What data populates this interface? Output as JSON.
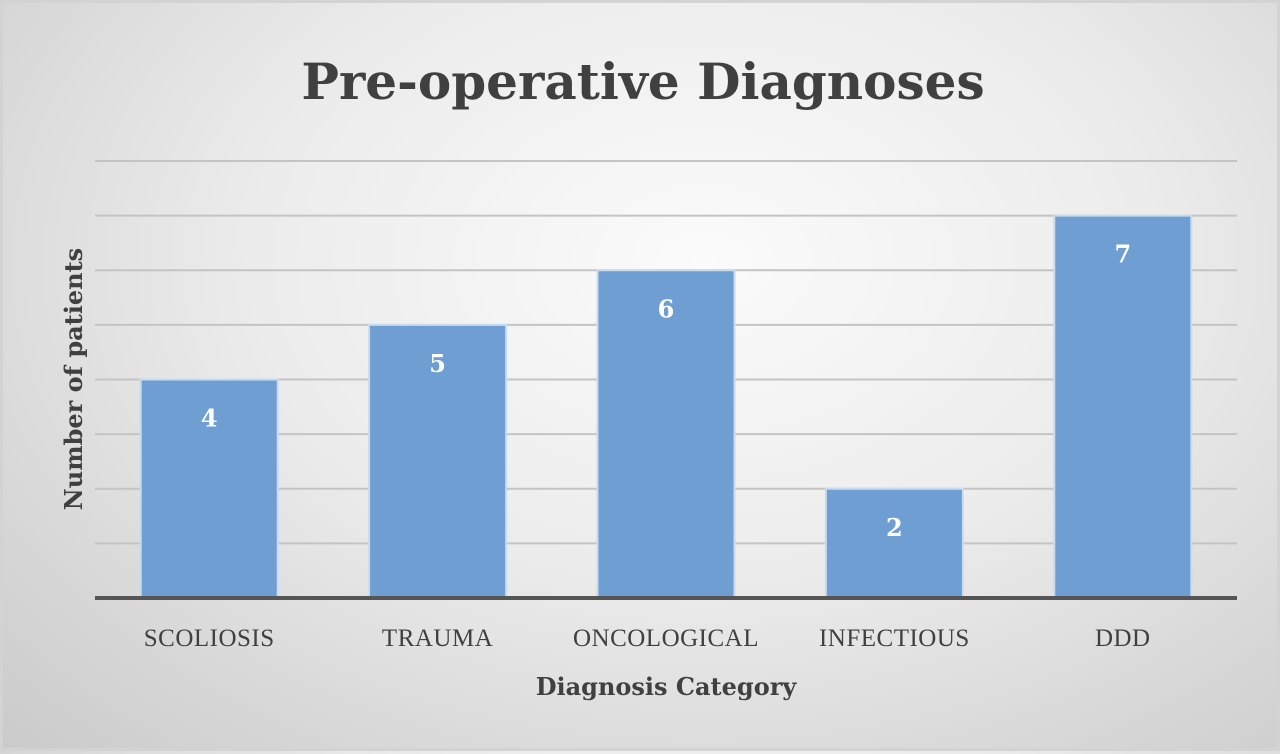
{
  "chart_data": {
    "type": "bar",
    "title": "Pre-operative Diagnoses",
    "xlabel": "Diagnosis Category",
    "ylabel": "Number of patients",
    "categories": [
      "SCOLIOSIS",
      "TRAUMA",
      "ONCOLOGICAL",
      "INFECTIOUS",
      "DDD"
    ],
    "values": [
      4,
      5,
      6,
      2,
      7
    ],
    "ylim": [
      0,
      8
    ],
    "grid": true,
    "show_data_labels": true,
    "bar_color": "#6f9fd2",
    "bar_border_color": "#c9dcef"
  }
}
